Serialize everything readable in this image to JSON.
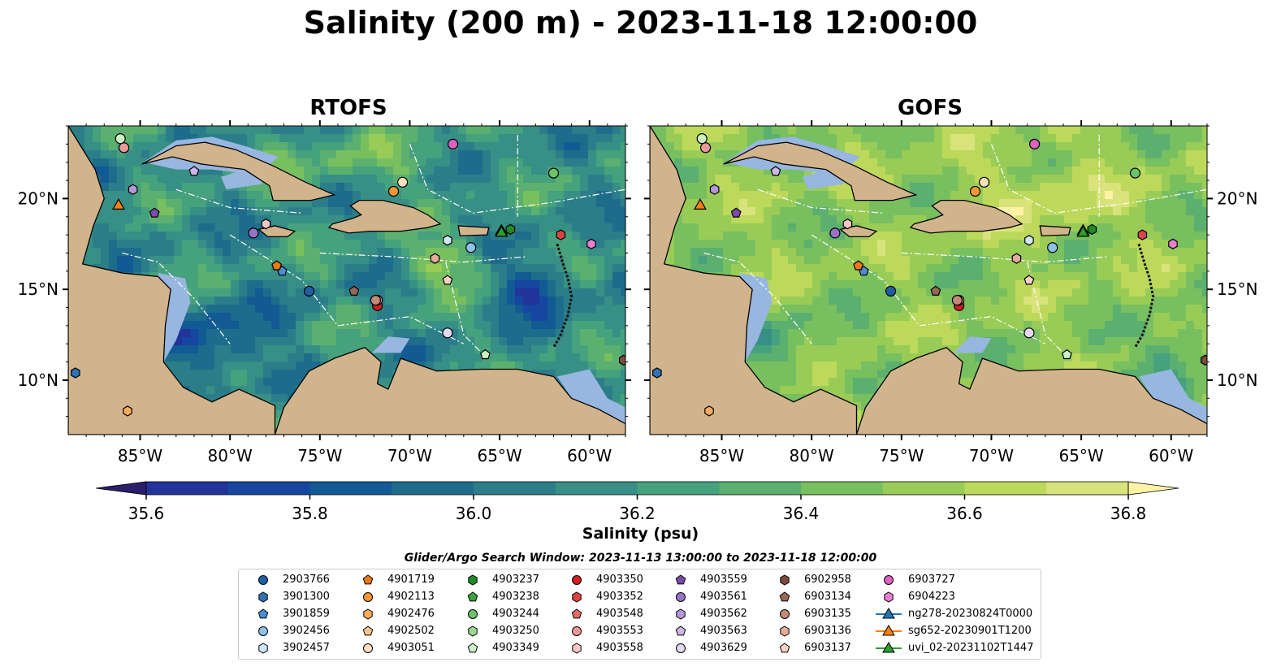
{
  "title": "Salinity (200 m) - 2023-11-18 12:00:00",
  "panels": [
    {
      "title": "RTOFS",
      "field": "rtofs"
    },
    {
      "title": "GOFS",
      "field": "gofs"
    }
  ],
  "map_extent": {
    "lon_min": -89,
    "lon_max": -58,
    "lat_min": 7,
    "lat_max": 24
  },
  "lon_ticks": [
    {
      "lon": -85,
      "label": "85°W"
    },
    {
      "lon": -80,
      "label": "80°W"
    },
    {
      "lon": -75,
      "label": "75°W"
    },
    {
      "lon": -70,
      "label": "70°W"
    },
    {
      "lon": -65,
      "label": "65°W"
    },
    {
      "lon": -60,
      "label": "60°W"
    }
  ],
  "lat_ticks": [
    {
      "lat": 10,
      "label": "10°N"
    },
    {
      "lat": 15,
      "label": "15°N"
    },
    {
      "lat": 20,
      "label": "20°N"
    }
  ],
  "colorbar": {
    "label": "Salinity (psu)",
    "min": 35.5,
    "max": 36.9,
    "step": 0.1,
    "ticks": [
      "35.6",
      "35.8",
      "36.0",
      "36.2",
      "36.4",
      "36.6",
      "36.8"
    ],
    "colors": [
      "#2a1f6b",
      "#22339b",
      "#16469f",
      "#125a94",
      "#1e6c8c",
      "#2b7e89",
      "#378f85",
      "#46a17d",
      "#5cb06f",
      "#78bf60",
      "#99cc57",
      "#bcd95b",
      "#d9e37b",
      "#fdf3a6"
    ]
  },
  "colors": {
    "land": "#d2b48c",
    "shelf": "#97b6e0",
    "coast": "#000000"
  },
  "legend": {
    "title": "Glider/Argo Search Window: 2023-11-13 13:00:00 to 2023-11-18 12:00:00",
    "columns": [
      [
        {
          "label": "2903766",
          "marker": "circle",
          "color": "#1f5fa6"
        },
        {
          "label": "3901300",
          "marker": "hexagon",
          "color": "#2f72b8"
        },
        {
          "label": "3901859",
          "marker": "pentagon",
          "color": "#4a8fd4"
        },
        {
          "label": "3902456",
          "marker": "circle",
          "color": "#8ec2ea"
        },
        {
          "label": "3902457",
          "marker": "hexagon",
          "color": "#cfe6f7"
        }
      ],
      [
        {
          "label": "4901719",
          "marker": "pentagon",
          "color": "#f07a10"
        },
        {
          "label": "4902113",
          "marker": "circle",
          "color": "#f7962e"
        },
        {
          "label": "4902476",
          "marker": "hexagon",
          "color": "#fbac5c"
        },
        {
          "label": "4902502",
          "marker": "pentagon",
          "color": "#fcc48c"
        },
        {
          "label": "4903051",
          "marker": "circle",
          "color": "#fde0c0"
        }
      ],
      [
        {
          "label": "4903237",
          "marker": "hexagon",
          "color": "#1f8a26"
        },
        {
          "label": "4903238",
          "marker": "pentagon",
          "color": "#3aa23e"
        },
        {
          "label": "4903244",
          "marker": "circle",
          "color": "#6cc46a"
        },
        {
          "label": "4903250",
          "marker": "hexagon",
          "color": "#9ad893"
        },
        {
          "label": "4903349",
          "marker": "pentagon",
          "color": "#cdefc4"
        }
      ],
      [
        {
          "label": "4903350",
          "marker": "circle",
          "color": "#d21f1f"
        },
        {
          "label": "4903352",
          "marker": "hexagon",
          "color": "#dc4444"
        },
        {
          "label": "4903548",
          "marker": "pentagon",
          "color": "#e46a6a"
        },
        {
          "label": "4903553",
          "marker": "circle",
          "color": "#f09898"
        },
        {
          "label": "4903558",
          "marker": "hexagon",
          "color": "#f8c6c4"
        }
      ],
      [
        {
          "label": "4903559",
          "marker": "pentagon",
          "color": "#7b4cab"
        },
        {
          "label": "4903561",
          "marker": "circle",
          "color": "#9a74c4"
        },
        {
          "label": "4903562",
          "marker": "hexagon",
          "color": "#b597d8"
        },
        {
          "label": "4903563",
          "marker": "pentagon",
          "color": "#cdb7e6"
        },
        {
          "label": "4903629",
          "marker": "circle",
          "color": "#e4d8f2"
        }
      ],
      [
        {
          "label": "6902958",
          "marker": "hexagon",
          "color": "#7a4a3c"
        },
        {
          "label": "6903134",
          "marker": "pentagon",
          "color": "#9a6656"
        },
        {
          "label": "6903135",
          "marker": "circle",
          "color": "#c48a78"
        },
        {
          "label": "6903136",
          "marker": "hexagon",
          "color": "#e6aa98"
        },
        {
          "label": "6903137",
          "marker": "pentagon",
          "color": "#f8d2c4"
        }
      ],
      [
        {
          "label": "6903727",
          "marker": "circle",
          "color": "#dd62c2"
        },
        {
          "label": "6904223",
          "marker": "hexagon",
          "color": "#e97fd0"
        },
        {
          "label": "ng278-20230824T0000",
          "marker": "triangle-line",
          "color": "#1f77b4"
        },
        {
          "label": "sg652-20230901T1200",
          "marker": "triangle-line",
          "color": "#ff7f0e"
        },
        {
          "label": "uvi_02-20231102T1447",
          "marker": "triangle-line",
          "color": "#2ca02c"
        }
      ]
    ]
  },
  "floats": [
    {
      "id": "2903766",
      "lon": -75.6,
      "lat": 14.9
    },
    {
      "id": "3901300",
      "lon": -88.6,
      "lat": 10.4
    },
    {
      "id": "3901859",
      "lon": -77.1,
      "lat": 16.0
    },
    {
      "id": "3902456",
      "lon": -66.6,
      "lat": 17.3
    },
    {
      "id": "3902457",
      "lon": -67.9,
      "lat": 17.7
    },
    {
      "id": "4901719",
      "lon": -77.4,
      "lat": 16.3
    },
    {
      "id": "4902113",
      "lon": -70.9,
      "lat": 20.4
    },
    {
      "id": "4902476",
      "lon": -85.7,
      "lat": 8.3
    },
    {
      "id": "4903051",
      "lon": -70.4,
      "lat": 20.9
    },
    {
      "id": "4903237",
      "lon": -64.4,
      "lat": 18.3
    },
    {
      "id": "4903244",
      "lon": -62.0,
      "lat": 21.4
    },
    {
      "id": "4903349",
      "lon": -65.8,
      "lat": 11.4
    },
    {
      "id": "4903350",
      "lon": -71.8,
      "lat": 14.1
    },
    {
      "id": "4903352",
      "lon": -61.6,
      "lat": 18.0
    },
    {
      "id": "4903553",
      "lon": -71.8,
      "lat": 14.4
    },
    {
      "id": "4903558",
      "lon": -78.0,
      "lat": 18.6
    },
    {
      "id": "4903559",
      "lon": -84.2,
      "lat": 19.2
    },
    {
      "id": "4903561",
      "lon": -78.7,
      "lat": 18.1
    },
    {
      "id": "4903562",
      "lon": -85.4,
      "lat": 20.5
    },
    {
      "id": "4903563",
      "lon": -82.0,
      "lat": 21.5
    },
    {
      "id": "4903629",
      "lon": -67.9,
      "lat": 12.6
    },
    {
      "id": "6902958",
      "lon": -58.1,
      "lat": 11.1
    },
    {
      "id": "6903134",
      "lon": -73.1,
      "lat": 14.9
    },
    {
      "id": "6903135",
      "lon": -71.9,
      "lat": 14.4
    },
    {
      "id": "6903136",
      "lon": -68.6,
      "lat": 16.7
    },
    {
      "id": "6903137",
      "lon": -67.9,
      "lat": 15.5
    },
    {
      "id": "6903727",
      "lon": -67.6,
      "lat": 23.0
    },
    {
      "id": "6904223",
      "lon": -59.9,
      "lat": 17.5
    },
    {
      "id": "3902458-extra-pink",
      "lon": -85.9,
      "lat": 22.8
    },
    {
      "id": "4903250-light-green",
      "lon": -86.1,
      "lat": 23.3
    }
  ],
  "gliders": [
    {
      "id": "ng278-20230824T0000",
      "lon": -64.9,
      "lat": 18.2
    },
    {
      "id": "sg652-20230901T1200",
      "lon": -86.2,
      "lat": 19.6
    },
    {
      "id": "uvi_02-20231102T1447",
      "lon": -64.9,
      "lat": 18.1
    }
  ]
}
